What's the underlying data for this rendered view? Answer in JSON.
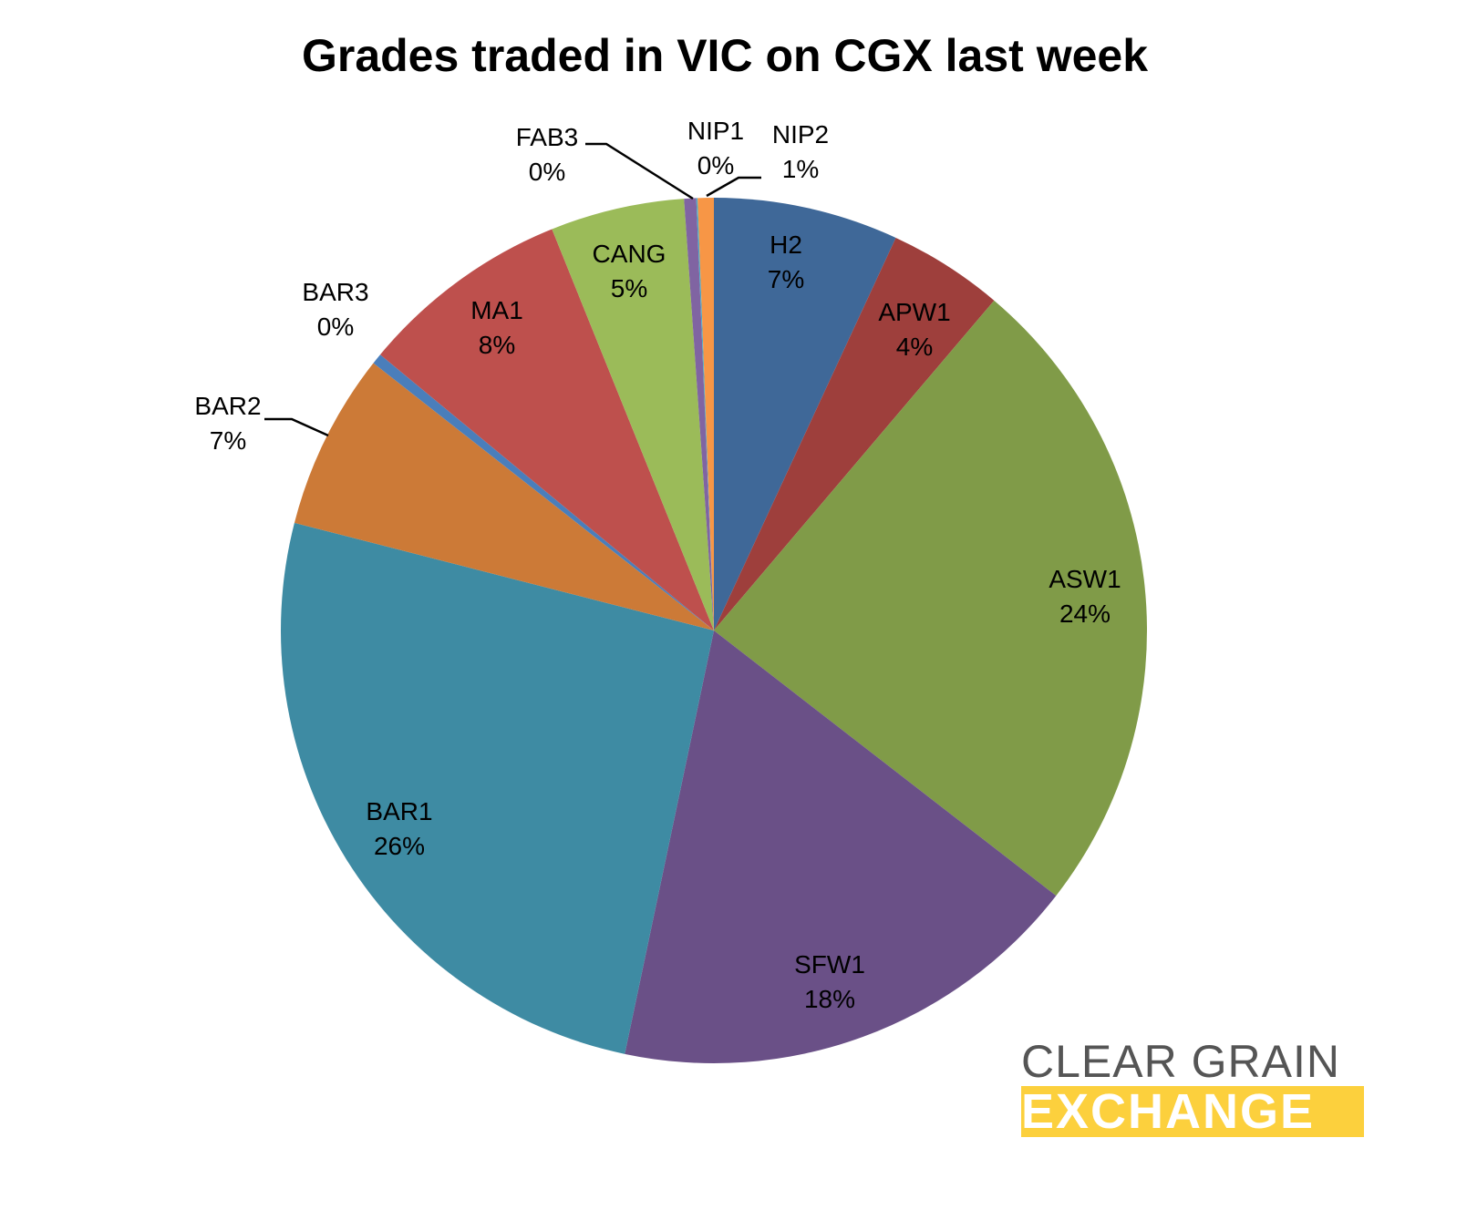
{
  "chart_data": {
    "type": "pie",
    "title": "Grades traded in VIC on CGX last week",
    "start_angle": "top, clockwise",
    "slices": [
      {
        "label": "H2",
        "value": 6.9,
        "display": "7%",
        "color": "#3F6898"
      },
      {
        "label": "APW1",
        "value": 4.3,
        "display": "4%",
        "color": "#9E3F3C"
      },
      {
        "label": "ASW1",
        "value": 24.3,
        "display": "24%",
        "color": "#809B48"
      },
      {
        "label": "SFW1",
        "value": 17.8,
        "display": "18%",
        "color": "#6A5087"
      },
      {
        "label": "BAR1",
        "value": 25.7,
        "display": "26%",
        "color": "#3E8BA3"
      },
      {
        "label": "BAR2",
        "value": 6.6,
        "display": "7%",
        "color": "#CC7A37"
      },
      {
        "label": "BAR3",
        "value": 0.4,
        "display": "0%",
        "color": "#4A7EBB"
      },
      {
        "label": "MA1",
        "value": 7.9,
        "display": "8%",
        "color": "#BE504D"
      },
      {
        "label": "CANG",
        "value": 5.0,
        "display": "5%",
        "color": "#9BBB59"
      },
      {
        "label": "FAB3",
        "value": 0.45,
        "display": "0%",
        "color": "#8064A2"
      },
      {
        "label": "NIP1",
        "value": 0.05,
        "display": "0%",
        "color": "#4BACC6"
      },
      {
        "label": "NIP2",
        "value": 0.6,
        "display": "1%",
        "color": "#F79646"
      }
    ]
  },
  "logo": {
    "line1": "CLEAR GRAIN",
    "line2": "EXCHANGE"
  }
}
